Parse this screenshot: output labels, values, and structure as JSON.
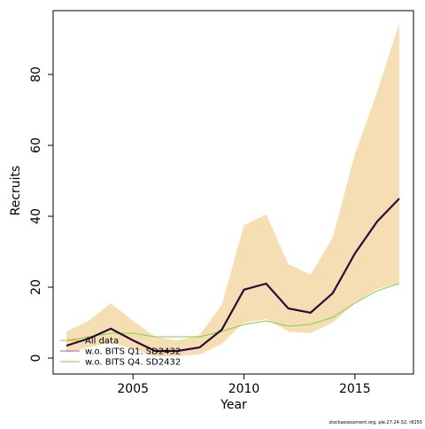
{
  "chart_data": {
    "type": "line",
    "x_label": "Year",
    "y_label": "Recruits",
    "footer": "stockassessment.org, ple.27.24-32, r8255",
    "x": [
      2002,
      2003,
      2004,
      2005,
      2006,
      2007,
      2008,
      2009,
      2010,
      2011,
      2012,
      2013,
      2014,
      2015,
      2016,
      2017
    ],
    "band": {
      "color": "#f5deb3",
      "upper": [
        7.5,
        10.5,
        15.5,
        10.5,
        6,
        5,
        6.5,
        15,
        37.5,
        40.5,
        26.5,
        23.5,
        34,
        57.5,
        75,
        94.5
      ],
      "lower": [
        1.5,
        3,
        4.5,
        2.5,
        0.5,
        0.5,
        1,
        4,
        10,
        11,
        7.5,
        7,
        10,
        15.5,
        19.5,
        21
      ]
    },
    "series": [
      {
        "name": "All data",
        "color": "#e8a040",
        "values": [
          3.5,
          5.5,
          8.3,
          5,
          2,
          2,
          3,
          8,
          19.3,
          21,
          14,
          12.8,
          18.3,
          29.5,
          38.5,
          45
        ]
      },
      {
        "name": "w.o. BITS Q1. SD2432",
        "color": "#9a5fb0",
        "values": [
          3.5,
          5.5,
          8.3,
          5,
          2,
          2,
          3,
          8,
          19.3,
          21,
          14,
          12.8,
          18.3,
          29.5,
          38.5,
          45
        ]
      },
      {
        "name": "w.o. BITS Q4. SD2432",
        "color": "#80d040",
        "values": [
          5,
          6,
          7,
          7,
          6,
          6,
          6,
          7.5,
          9.5,
          10.5,
          9,
          9.5,
          11.5,
          15.5,
          19,
          21
        ]
      }
    ],
    "main_color": "#2d0a3a",
    "xlim": [
      2001.4,
      2017.64
    ],
    "xticks": [
      2005,
      2010,
      2015
    ],
    "ylim": [
      -4.5,
      98
    ],
    "yticks": [
      0,
      20,
      40,
      60,
      80
    ]
  }
}
